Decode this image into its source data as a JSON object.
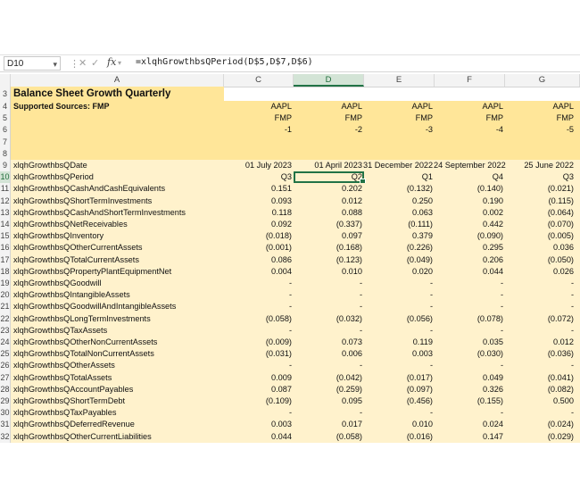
{
  "formula_bar": {
    "name_box": "D10",
    "formula": "=xlqhGrowthbsQPeriod(D$5,D$7,D$6)",
    "fx_label": "fx"
  },
  "columns": [
    "A",
    "C",
    "D",
    "E",
    "F",
    "G"
  ],
  "selected_column": "D",
  "selected_row": "10",
  "colors": {
    "header_fill": "#ffe699",
    "data_fill": "#fff2cc",
    "selection": "#217346"
  },
  "sheet": {
    "title": "Balance Sheet Growth Quarterly",
    "supported_sources": "Supported Sources: FMP",
    "header_rows": [
      {
        "row": "4",
        "values": [
          "AAPL",
          "AAPL",
          "AAPL",
          "AAPL",
          "AAPL"
        ]
      },
      {
        "row": "5",
        "values": [
          "FMP",
          "FMP",
          "FMP",
          "FMP",
          "FMP"
        ]
      },
      {
        "row": "6",
        "values": [
          "-1",
          "-2",
          "-3",
          "-4",
          "-5"
        ]
      },
      {
        "row": "7",
        "values": [
          "",
          "",
          "",
          "",
          ""
        ]
      },
      {
        "row": "8",
        "values": [
          "",
          "",
          "",
          "",
          ""
        ]
      }
    ],
    "data_rows": [
      {
        "row": "9",
        "label": "xlqhGrowthbsQDate",
        "values": [
          "01 July 2023",
          "01 April 2023",
          "31 December 2022",
          "24 September 2022",
          "25 June 2022"
        ]
      },
      {
        "row": "10",
        "label": "xlqhGrowthbsQPeriod",
        "values": [
          "Q3",
          "Q2",
          "Q1",
          "Q4",
          "Q3"
        ]
      },
      {
        "row": "11",
        "label": "xlqhGrowthbsQCashAndCashEquivalents",
        "values": [
          "0.151",
          "0.202",
          "(0.132)",
          "(0.140)",
          "(0.021)"
        ]
      },
      {
        "row": "12",
        "label": "xlqhGrowthbsQShortTermInvestments",
        "values": [
          "0.093",
          "0.012",
          "0.250",
          "0.190",
          "(0.115)"
        ]
      },
      {
        "row": "13",
        "label": "xlqhGrowthbsQCashAndShortTermInvestments",
        "values": [
          "0.118",
          "0.088",
          "0.063",
          "0.002",
          "(0.064)"
        ]
      },
      {
        "row": "14",
        "label": "xlqhGrowthbsQNetReceivables",
        "values": [
          "0.092",
          "(0.337)",
          "(0.111)",
          "0.442",
          "(0.070)"
        ]
      },
      {
        "row": "15",
        "label": "xlqhGrowthbsQInventory",
        "values": [
          "(0.018)",
          "0.097",
          "0.379",
          "(0.090)",
          "(0.005)"
        ]
      },
      {
        "row": "16",
        "label": "xlqhGrowthbsQOtherCurrentAssets",
        "values": [
          "(0.001)",
          "(0.168)",
          "(0.226)",
          "0.295",
          "0.036"
        ]
      },
      {
        "row": "17",
        "label": "xlqhGrowthbsQTotalCurrentAssets",
        "values": [
          "0.086",
          "(0.123)",
          "(0.049)",
          "0.206",
          "(0.050)"
        ]
      },
      {
        "row": "18",
        "label": "xlqhGrowthbsQPropertyPlantEquipmentNet",
        "values": [
          "0.004",
          "0.010",
          "0.020",
          "0.044",
          "0.026"
        ]
      },
      {
        "row": "19",
        "label": "xlqhGrowthbsQGoodwill",
        "values": [
          "-",
          "-",
          "-",
          "-",
          "-"
        ]
      },
      {
        "row": "20",
        "label": "xlqhGrowthbsQIntangibleAssets",
        "values": [
          "-",
          "-",
          "-",
          "-",
          "-"
        ]
      },
      {
        "row": "21",
        "label": "xlqhGrowthbsQGoodwillAndIntangibleAssets",
        "values": [
          "-",
          "-",
          "-",
          "-",
          "-"
        ]
      },
      {
        "row": "22",
        "label": "xlqhGrowthbsQLongTermInvestments",
        "values": [
          "(0.058)",
          "(0.032)",
          "(0.056)",
          "(0.078)",
          "(0.072)"
        ]
      },
      {
        "row": "23",
        "label": "xlqhGrowthbsQTaxAssets",
        "values": [
          "-",
          "-",
          "-",
          "-",
          "-"
        ]
      },
      {
        "row": "24",
        "label": "xlqhGrowthbsQOtherNonCurrentAssets",
        "values": [
          "(0.009)",
          "0.073",
          "0.119",
          "0.035",
          "0.012"
        ]
      },
      {
        "row": "25",
        "label": "xlqhGrowthbsQTotalNonCurrentAssets",
        "values": [
          "(0.031)",
          "0.006",
          "0.003",
          "(0.030)",
          "(0.036)"
        ]
      },
      {
        "row": "26",
        "label": "xlqhGrowthbsQOtherAssets",
        "values": [
          "-",
          "-",
          "-",
          "-",
          "-"
        ]
      },
      {
        "row": "27",
        "label": "xlqhGrowthbsQTotalAssets",
        "values": [
          "0.009",
          "(0.042)",
          "(0.017)",
          "0.049",
          "(0.041)"
        ]
      },
      {
        "row": "28",
        "label": "xlqhGrowthbsQAccountPayables",
        "values": [
          "0.087",
          "(0.259)",
          "(0.097)",
          "0.326",
          "(0.082)"
        ]
      },
      {
        "row": "29",
        "label": "xlqhGrowthbsQShortTermDebt",
        "values": [
          "(0.109)",
          "0.095",
          "(0.456)",
          "(0.155)",
          "0.500"
        ]
      },
      {
        "row": "30",
        "label": "xlqhGrowthbsQTaxPayables",
        "values": [
          "-",
          "-",
          "-",
          "-",
          "-"
        ]
      },
      {
        "row": "31",
        "label": "xlqhGrowthbsQDeferredRevenue",
        "values": [
          "0.003",
          "0.017",
          "0.010",
          "0.024",
          "(0.024)"
        ]
      },
      {
        "row": "32",
        "label": "xlqhGrowthbsQOtherCurrentLiabilities",
        "values": [
          "0.044",
          "(0.058)",
          "(0.016)",
          "0.147",
          "(0.029)"
        ]
      }
    ]
  }
}
